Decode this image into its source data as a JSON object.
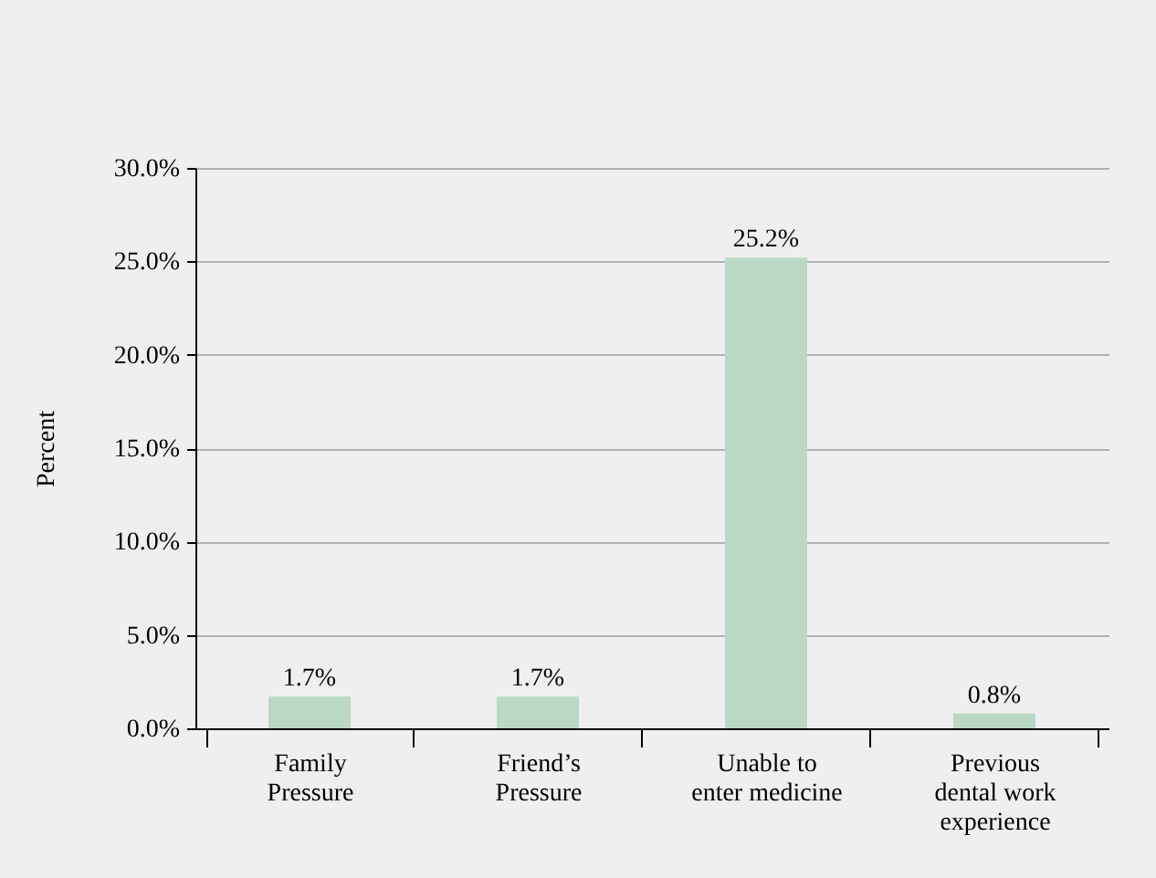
{
  "chart_data": {
    "type": "bar",
    "ylabel": "Percent",
    "categories": [
      "Family Pressure",
      "Friend’s Pressure",
      "Unable to enter medicine",
      "Previous dental work experience"
    ],
    "values": [
      1.7,
      1.7,
      25.2,
      0.8
    ],
    "value_labels": [
      "1.7%",
      "1.7%",
      "25.2%",
      "0.8%"
    ],
    "color": "#b9d9c5",
    "ylim": [
      0,
      30
    ],
    "yticks": [
      {
        "value": 0,
        "label": "0.0%"
      },
      {
        "value": 5,
        "label": "5.0%"
      },
      {
        "value": 10,
        "label": "10.0%"
      },
      {
        "value": 15,
        "label": "15.0%"
      },
      {
        "value": 20,
        "label": "20.0%"
      },
      {
        "value": 25,
        "label": "25.0%"
      },
      {
        "value": 30,
        "label": "30.0%"
      }
    ],
    "grid": "y"
  }
}
